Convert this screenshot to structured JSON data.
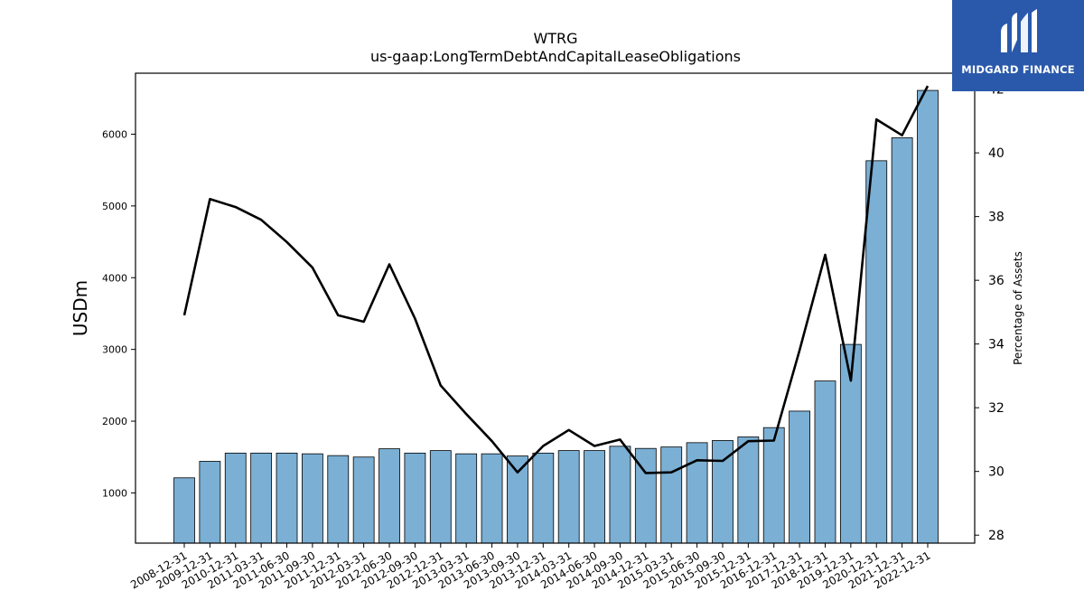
{
  "chart_data": {
    "type": "bar",
    "title": "WTRG",
    "subtitle": "us-gaap:LongTermDebtAndCapitalLeaseObligations",
    "ylabel": "USDm",
    "y2label": "Percentage of Assets",
    "ylim": [
      300,
      6850
    ],
    "y2lim": [
      27.75,
      42.5
    ],
    "yticks": [
      1000,
      2000,
      3000,
      4000,
      5000,
      6000
    ],
    "y2ticks": [
      28,
      30,
      32,
      34,
      36,
      38,
      40,
      42
    ],
    "grid": false,
    "bar_color": "#7bafd4",
    "line_color": "#000000",
    "categories": [
      "2008-12-31",
      "2009-12-31",
      "2010-12-31",
      "2011-03-31",
      "2011-06-30",
      "2011-09-30",
      "2011-12-31",
      "2012-03-31",
      "2012-06-30",
      "2012-09-30",
      "2012-12-31",
      "2013-03-31",
      "2013-06-30",
      "2013-09-30",
      "2013-12-31",
      "2014-03-31",
      "2014-06-30",
      "2014-09-30",
      "2014-12-31",
      "2015-03-31",
      "2015-06-30",
      "2015-09-30",
      "2015-12-31",
      "2016-12-31",
      "2017-12-31",
      "2018-12-31",
      "2019-12-31",
      "2020-12-31",
      "2021-12-31",
      "2022-12-31"
    ],
    "series": [
      {
        "type": "bar",
        "axis": "left",
        "values": [
          1210,
          1440,
          1555,
          1555,
          1555,
          1545,
          1520,
          1500,
          1615,
          1555,
          1590,
          1545,
          1545,
          1515,
          1555,
          1590,
          1590,
          1650,
          1620,
          1640,
          1700,
          1730,
          1780,
          1910,
          2140,
          2560,
          3070,
          5630,
          5950,
          6610
        ]
      },
      {
        "type": "line",
        "axis": "right",
        "values": [
          34.9,
          38.55,
          38.3,
          37.9,
          37.2,
          36.4,
          34.9,
          34.7,
          36.5,
          34.8,
          32.7,
          31.8,
          30.95,
          29.97,
          30.8,
          31.3,
          30.8,
          31.0,
          29.95,
          29.97,
          30.35,
          30.33,
          30.95,
          30.97,
          33.8,
          36.8,
          32.85,
          41.05,
          40.55,
          42.1
        ]
      }
    ]
  },
  "logo": {
    "text": "MIDGARD FINANCE"
  }
}
